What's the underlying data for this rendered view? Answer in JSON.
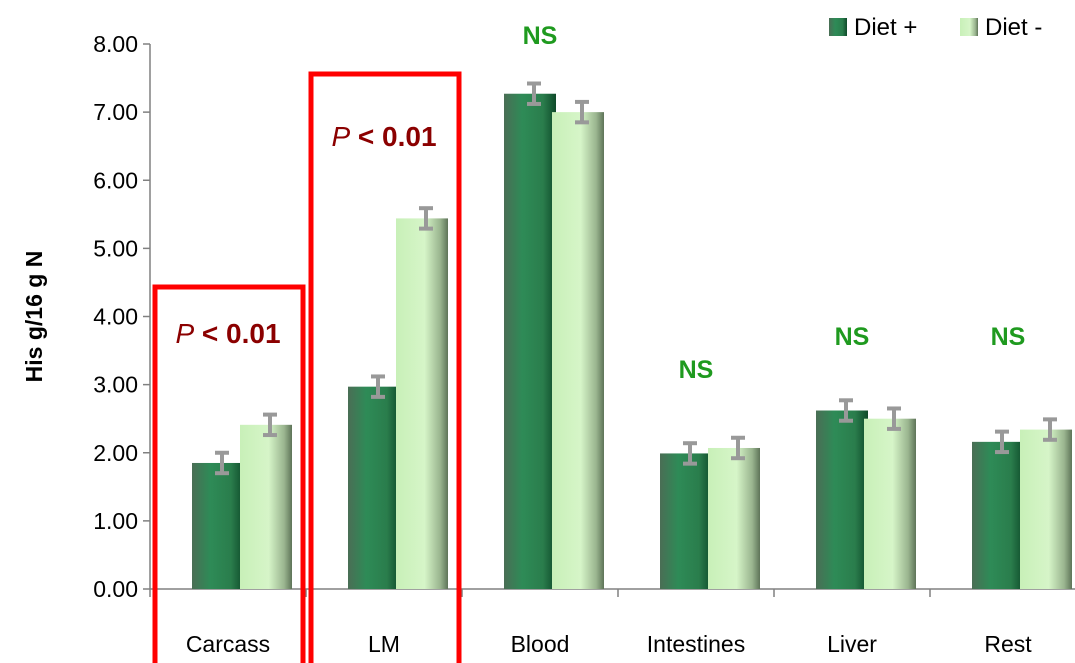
{
  "chart_data": {
    "type": "bar",
    "title": "",
    "xlabel": "",
    "ylabel": "His g/16 g N",
    "ylim": [
      0,
      8
    ],
    "yticks": [
      "0.00",
      "1.00",
      "2.00",
      "3.00",
      "4.00",
      "5.00",
      "6.00",
      "7.00",
      "8.00"
    ],
    "categories": [
      "Carcass",
      "LM",
      "Blood",
      "Intestines",
      "Liver",
      "Rest"
    ],
    "series": [
      {
        "name": "Diet +",
        "values": [
          1.85,
          2.97,
          7.27,
          1.99,
          2.62,
          2.16
        ],
        "errors": [
          0.15,
          0.15,
          0.15,
          0.15,
          0.15,
          0.15
        ]
      },
      {
        "name": "Diet -",
        "values": [
          2.41,
          5.44,
          7.0,
          2.07,
          2.5,
          2.34
        ],
        "errors": [
          0.15,
          0.15,
          0.15,
          0.15,
          0.15,
          0.15
        ]
      }
    ],
    "legend_position": "top-right",
    "grid": false,
    "annotations": [
      {
        "category": "Carcass",
        "italic": "P",
        "bold": " < 0.01",
        "color": "#8b0000",
        "highlight_box": true
      },
      {
        "category": "LM",
        "italic": "P",
        "bold": " < 0.01",
        "color": "#8b0000",
        "highlight_box": true
      },
      {
        "category": "Blood",
        "text": "NS",
        "color": "#1f9a1f"
      },
      {
        "category": "Intestines",
        "text": "NS",
        "color": "#1f9a1f"
      },
      {
        "category": "Liver",
        "text": "NS",
        "color": "#1f9a1f"
      },
      {
        "category": "Rest",
        "text": "NS",
        "color": "#1f9a1f"
      }
    ],
    "colors": {
      "series1": "#2e8b57",
      "series2": "#c8f0b8",
      "annotation_p": "#8b0000",
      "annotation_ns": "#1f9a1f",
      "highlight_box": "#ff0000"
    }
  }
}
